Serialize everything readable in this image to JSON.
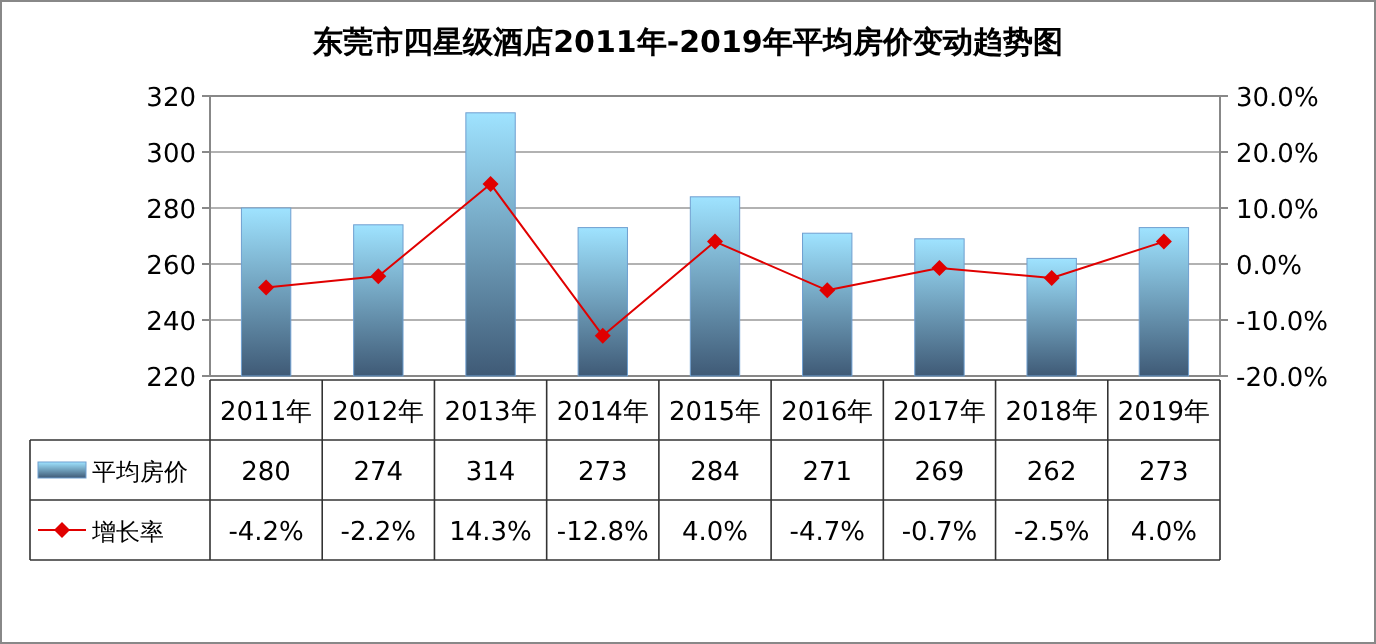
{
  "chart_data": {
    "type": "bar",
    "title": "东莞市四星级酒店2011年-2019年平均房价变动趋势图",
    "categories": [
      "2011年",
      "2012年",
      "2013年",
      "2014年",
      "2015年",
      "2016年",
      "2017年",
      "2018年",
      "2019年"
    ],
    "series": [
      {
        "name": "平均房价",
        "color": "#6f9fd0",
        "values": [
          280,
          274,
          314,
          273,
          284,
          271,
          269,
          262,
          273
        ],
        "value_labels": [
          "280",
          "274",
          "314",
          "273",
          "284",
          "271",
          "269",
          "262",
          "273"
        ]
      },
      {
        "name": "增长率",
        "type": "line",
        "axis": "y2",
        "color": "#e00000",
        "marker": "diamond",
        "line_style": "solid",
        "values": [
          -4.2,
          -2.2,
          14.3,
          -12.8,
          4.0,
          -4.7,
          -0.7,
          -2.5,
          4.0
        ],
        "value_labels": [
          "-4.2%",
          "-2.2%",
          "14.3%",
          "-12.8%",
          "4.0%",
          "-4.7%",
          "-0.7%",
          "-2.5%",
          "4.0%"
        ]
      }
    ],
    "ylim": [
      220,
      320
    ],
    "yticks": [
      220,
      240,
      260,
      280,
      300,
      320
    ],
    "y2lim": [
      -20,
      30
    ],
    "y2ticks": [
      {
        "value": -20,
        "label": "-20.0%"
      },
      {
        "value": -10,
        "label": "-10.0%"
      },
      {
        "value": 0,
        "label": "0.0%"
      },
      {
        "value": 10,
        "label": "10.0%"
      },
      {
        "value": 20,
        "label": "20.0%"
      },
      {
        "value": 30,
        "label": "30.0%"
      }
    ],
    "grid": "y",
    "legend": "bottom"
  }
}
